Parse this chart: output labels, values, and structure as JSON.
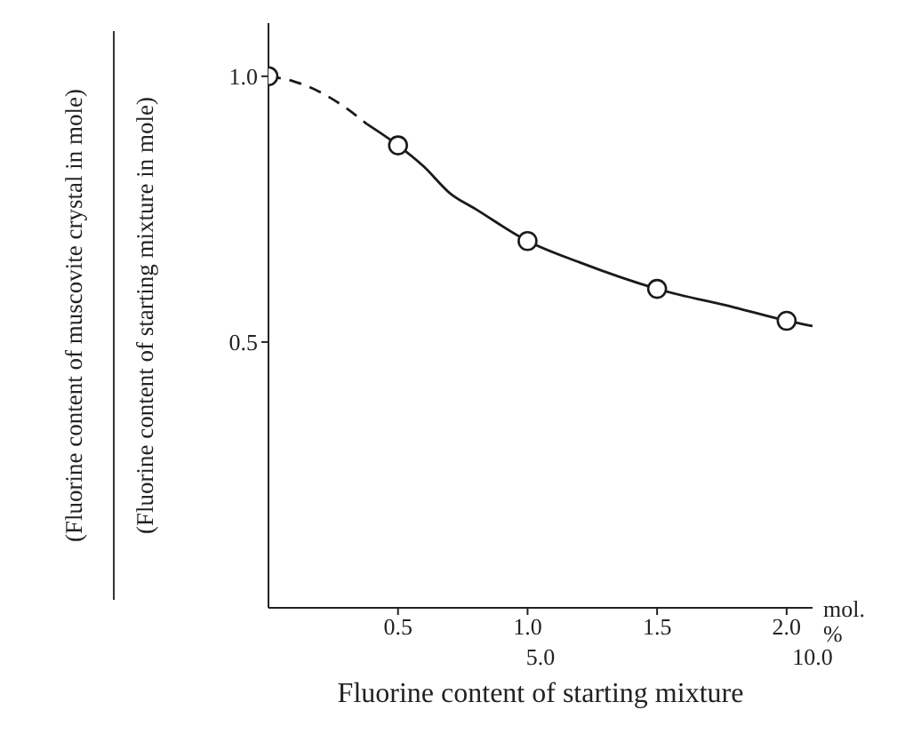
{
  "chart_data": {
    "type": "line",
    "xlabel": "Fluorine content of starting mixture",
    "ylabel": "(Fluorine content of muscovite crystal in mole) (Fluorine content of starting mixture in mole)",
    "xlim": [
      0,
      2.1
    ],
    "xticks": [
      0.5,
      {
        "value": 1,
        "label": "1.0"
      },
      1.5,
      {
        "value": 2,
        "label": "2.0"
      }
    ],
    "x2lim": [
      0,
      10
    ],
    "x2ticks": [
      {
        "value": 5,
        "label": "5.0"
      },
      {
        "value": 10,
        "label": "10.0"
      }
    ],
    "ylim": [
      0,
      1.1
    ],
    "yticks": [
      0.5,
      {
        "value": 1,
        "label": "1.0"
      }
    ],
    "annotations": [
      "mol. %"
    ],
    "series": [
      {
        "line_style": "dashed",
        "marker": "none",
        "color": "#1a1a1a",
        "x": [
          0,
          0.1,
          0.2,
          0.3,
          0.38
        ],
        "values": [
          1.0,
          0.99,
          0.97,
          0.94,
          0.91
        ]
      },
      {
        "line_style": "solid",
        "marker": "none",
        "color": "#1a1a1a",
        "x": [
          0.38,
          0.5,
          0.6,
          0.7,
          0.8,
          1.0,
          1.2,
          1.5,
          1.8,
          2.0,
          2.1
        ],
        "values": [
          0.91,
          0.87,
          0.83,
          0.78,
          0.75,
          0.69,
          0.65,
          0.6,
          0.565,
          0.54,
          0.53
        ]
      },
      {
        "type": "scatter",
        "marker": "circle",
        "color": "#1a1a1a",
        "x": [
          0,
          0.5,
          1.0,
          1.5,
          2.0
        ],
        "values": [
          1.0,
          0.87,
          0.69,
          0.6,
          0.54
        ]
      }
    ]
  }
}
